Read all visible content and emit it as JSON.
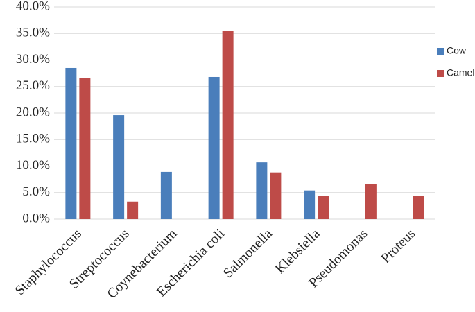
{
  "chart_data": {
    "type": "bar",
    "categories": [
      "Staphylococcus",
      "Streptococcus",
      "Coynebacterium",
      "Escherichia coli",
      "Salmonella",
      "Klebsiella",
      "Pseudomonas",
      "Proteus"
    ],
    "series": [
      {
        "name": "Cow",
        "color": "#4a7ebb",
        "values": [
          28.5,
          19.6,
          8.9,
          26.8,
          10.7,
          5.4,
          0,
          0
        ]
      },
      {
        "name": "Camel",
        "color": "#be4b48",
        "values": [
          26.6,
          3.3,
          0,
          35.5,
          8.8,
          4.4,
          6.6,
          4.4
        ]
      }
    ],
    "ylim": [
      0,
      40
    ],
    "yticks": [
      {
        "value": 0,
        "label": "0.0%"
      },
      {
        "value": 5,
        "label": "5.0%"
      },
      {
        "value": 10,
        "label": "10.0%"
      },
      {
        "value": 15,
        "label": "15.0%"
      },
      {
        "value": 20,
        "label": "20.0%"
      },
      {
        "value": 25,
        "label": "25.0%"
      },
      {
        "value": 30,
        "label": "30.0%"
      },
      {
        "value": 35,
        "label": "35.0%"
      },
      {
        "value": 40,
        "label": "40.0%"
      }
    ],
    "grid": true,
    "legend": "right"
  }
}
